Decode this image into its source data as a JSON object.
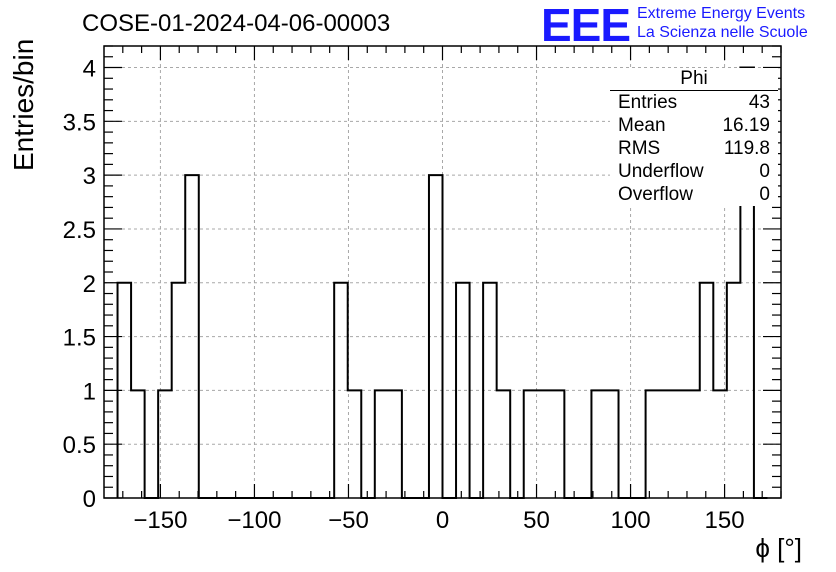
{
  "header": {
    "title": "COSE-01-2024-04-06-00003",
    "logo_mark": "EEE",
    "logo_line1": "Extreme Energy Events",
    "logo_line2": "La Scienza nelle Scuole"
  },
  "stats": {
    "title": "Phi",
    "rows": [
      {
        "label": "Entries",
        "value": "43"
      },
      {
        "label": "Mean",
        "value": "16.19"
      },
      {
        "label": "RMS",
        "value": "119.8"
      },
      {
        "label": "Underflow",
        "value": "0"
      },
      {
        "label": "Overflow",
        "value": "0"
      }
    ]
  },
  "chart_data": {
    "type": "bar",
    "style": "step-histogram",
    "xlabel": "ϕ [°]",
    "ylabel": "Entries/bin",
    "xlim": [
      -180,
      180
    ],
    "ylim": [
      0,
      4.2
    ],
    "grid": true,
    "bin_width": 7.2,
    "x_ticks": [
      -150,
      -100,
      -50,
      0,
      50,
      100,
      150
    ],
    "y_ticks": [
      0,
      0.5,
      1,
      1.5,
      2,
      2.5,
      3,
      3.5,
      4
    ],
    "y_tick_labels": [
      "0",
      "0.5",
      "1",
      "1.5",
      "2",
      "2.5",
      "3",
      "3.5",
      "4"
    ],
    "bin_edges": [
      -172.8,
      -165.6,
      -158.4,
      -151.2,
      -144,
      -136.8,
      -129.6,
      -122.4,
      -115.2,
      -108,
      -100.8,
      -93.6,
      -86.4,
      -79.2,
      -72,
      -64.8,
      -57.6,
      -50.4,
      -43.2,
      -36,
      -28.8,
      -21.6,
      -14.4,
      -7.2,
      0,
      7.2,
      14.4,
      21.6,
      28.8,
      36,
      43.2,
      50.4,
      57.6,
      64.8,
      72,
      79.2,
      86.4,
      93.6,
      100.8,
      108,
      115.2,
      122.4,
      129.6,
      136.8,
      144,
      151.2,
      158.4,
      165.6,
      172.8
    ],
    "counts": [
      2,
      1,
      0,
      1,
      2,
      3,
      0,
      0,
      0,
      0,
      0,
      0,
      0,
      0,
      0,
      0,
      2,
      1,
      0,
      1,
      1,
      0,
      0,
      3,
      0,
      2,
      0,
      2,
      1,
      0,
      1,
      1,
      1,
      0,
      0,
      1,
      1,
      0,
      0,
      1,
      1,
      1,
      1,
      2,
      1,
      2,
      4,
      0
    ]
  }
}
